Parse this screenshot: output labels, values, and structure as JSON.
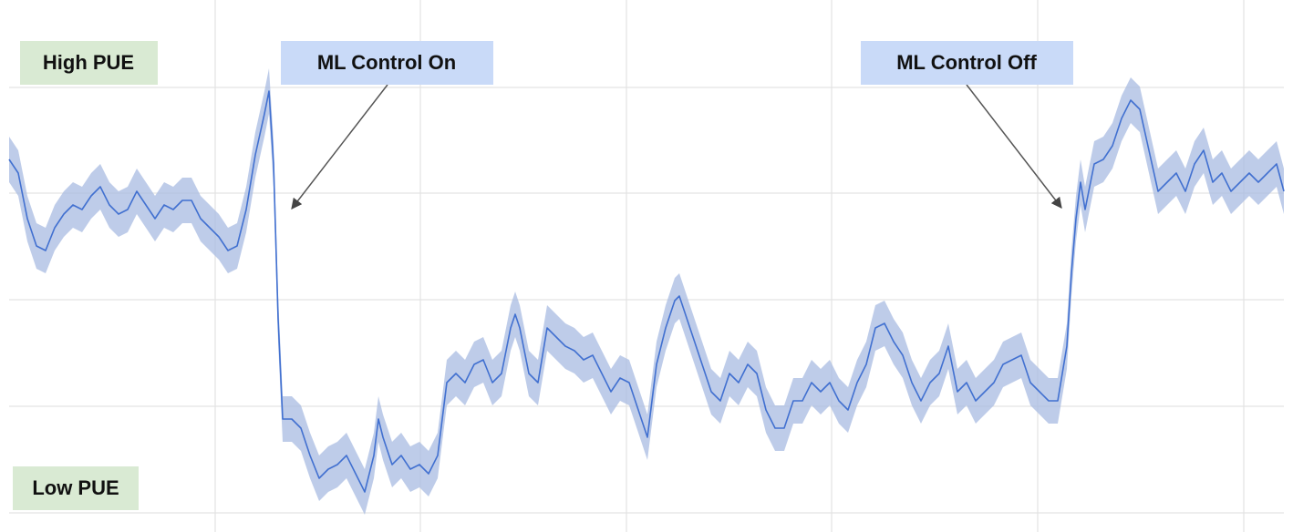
{
  "chart_data": {
    "type": "line",
    "annotations": [
      "High PUE",
      "ML Control On",
      "ML Control Off",
      "Low PUE"
    ],
    "xlim": [
      0,
      1398
    ],
    "xticks": [
      226,
      451,
      677,
      902,
      1128,
      1354
    ],
    "ylim": [
      0,
      584
    ],
    "yticks": [
      21,
      138,
      255,
      372,
      488
    ],
    "grid": true,
    "x": [
      0,
      10,
      20,
      30,
      40,
      50,
      60,
      70,
      80,
      90,
      100,
      110,
      120,
      130,
      140,
      150,
      160,
      170,
      180,
      190,
      200,
      210,
      220,
      230,
      240,
      250,
      260,
      270,
      280,
      285,
      290,
      295,
      300,
      310,
      320,
      330,
      340,
      350,
      360,
      370,
      380,
      390,
      400,
      405,
      410,
      420,
      430,
      440,
      450,
      460,
      470,
      480,
      490,
      500,
      510,
      520,
      530,
      540,
      550,
      555,
      560,
      570,
      580,
      590,
      600,
      610,
      620,
      630,
      640,
      650,
      660,
      670,
      680,
      690,
      700,
      710,
      720,
      730,
      735,
      740,
      750,
      760,
      770,
      780,
      790,
      800,
      810,
      820,
      830,
      840,
      850,
      860,
      870,
      880,
      890,
      900,
      910,
      920,
      930,
      940,
      950,
      960,
      970,
      980,
      990,
      1000,
      1010,
      1020,
      1030,
      1040,
      1050,
      1060,
      1070,
      1080,
      1090,
      1100,
      1110,
      1120,
      1130,
      1140,
      1150,
      1160,
      1165,
      1170,
      1175,
      1180,
      1190,
      1200,
      1210,
      1220,
      1230,
      1240,
      1250,
      1260,
      1270,
      1280,
      1290,
      1300,
      1310,
      1320,
      1330,
      1340,
      1350,
      1360,
      1370,
      1380,
      1390,
      1398
    ],
    "series": [
      {
        "color": "#4170d0",
        "band_color": "#a8bbe2",
        "error": 25,
        "values": [
          409,
          394,
          344,
          314,
          309,
          334,
          349,
          359,
          354,
          369,
          379,
          359,
          349,
          354,
          374,
          359,
          344,
          359,
          354,
          364,
          364,
          344,
          334,
          324,
          309,
          314,
          354,
          414,
          459,
          484,
          404,
          234,
          124,
          124,
          114,
          84,
          59,
          69,
          74,
          84,
          64,
          44,
          84,
          124,
          104,
          74,
          84,
          69,
          74,
          64,
          84,
          164,
          174,
          164,
          184,
          189,
          164,
          174,
          224,
          239,
          224,
          174,
          164,
          224,
          214,
          204,
          199,
          189,
          194,
          174,
          154,
          169,
          164,
          134,
          104,
          184,
          224,
          254,
          259,
          244,
          214,
          184,
          154,
          144,
          174,
          164,
          184,
          174,
          134,
          114,
          114,
          144,
          144,
          164,
          154,
          164,
          144,
          134,
          164,
          184,
          224,
          229,
          209,
          194,
          164,
          144,
          164,
          174,
          204,
          154,
          164,
          144,
          154,
          164,
          184,
          189,
          194,
          164,
          154,
          144,
          144,
          204,
          284,
          344,
          384,
          354,
          404,
          409,
          424,
          454,
          474,
          464,
          419,
          374,
          384,
          394,
          374,
          404,
          419,
          384,
          394,
          374,
          384,
          394,
          384,
          394,
          404,
          374
        ]
      }
    ]
  }
}
